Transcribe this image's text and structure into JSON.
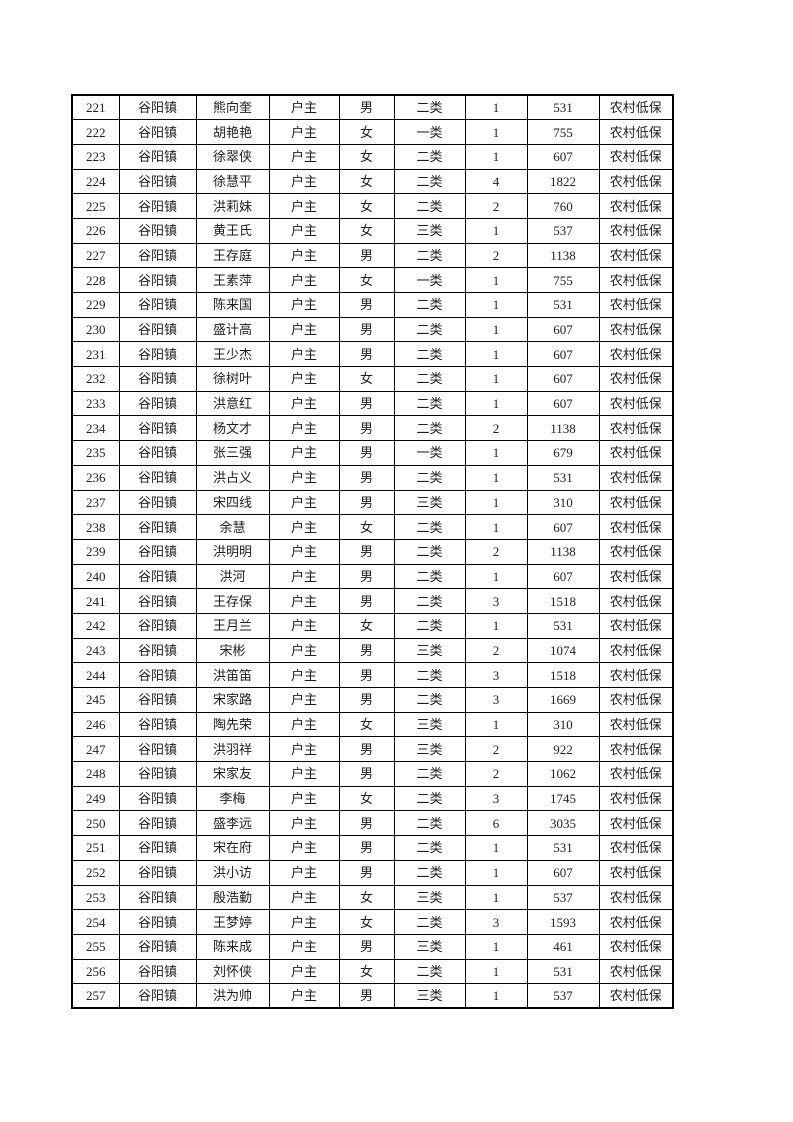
{
  "page": {
    "background_color": "#ffffff"
  },
  "table": {
    "border_color": "#000000",
    "text_color": "#1f1f1f",
    "column_keys": [
      "seq",
      "town",
      "name",
      "relation",
      "gender",
      "category",
      "count",
      "amount",
      "type"
    ],
    "rows": [
      [
        "221",
        "谷阳镇",
        "熊向奎",
        "户主",
        "男",
        "二类",
        "1",
        "531",
        "农村低保"
      ],
      [
        "222",
        "谷阳镇",
        "胡艳艳",
        "户主",
        "女",
        "一类",
        "1",
        "755",
        "农村低保"
      ],
      [
        "223",
        "谷阳镇",
        "徐翠侠",
        "户主",
        "女",
        "二类",
        "1",
        "607",
        "农村低保"
      ],
      [
        "224",
        "谷阳镇",
        "徐慧平",
        "户主",
        "女",
        "二类",
        "4",
        "1822",
        "农村低保"
      ],
      [
        "225",
        "谷阳镇",
        "洪莉妹",
        "户主",
        "女",
        "二类",
        "2",
        "760",
        "农村低保"
      ],
      [
        "226",
        "谷阳镇",
        "黄王氏",
        "户主",
        "女",
        "三类",
        "1",
        "537",
        "农村低保"
      ],
      [
        "227",
        "谷阳镇",
        "王存庭",
        "户主",
        "男",
        "二类",
        "2",
        "1138",
        "农村低保"
      ],
      [
        "228",
        "谷阳镇",
        "王素萍",
        "户主",
        "女",
        "一类",
        "1",
        "755",
        "农村低保"
      ],
      [
        "229",
        "谷阳镇",
        "陈来国",
        "户主",
        "男",
        "二类",
        "1",
        "531",
        "农村低保"
      ],
      [
        "230",
        "谷阳镇",
        "盛计高",
        "户主",
        "男",
        "二类",
        "1",
        "607",
        "农村低保"
      ],
      [
        "231",
        "谷阳镇",
        "王少杰",
        "户主",
        "男",
        "二类",
        "1",
        "607",
        "农村低保"
      ],
      [
        "232",
        "谷阳镇",
        "徐树叶",
        "户主",
        "女",
        "二类",
        "1",
        "607",
        "农村低保"
      ],
      [
        "233",
        "谷阳镇",
        "洪意红",
        "户主",
        "男",
        "二类",
        "1",
        "607",
        "农村低保"
      ],
      [
        "234",
        "谷阳镇",
        "杨文才",
        "户主",
        "男",
        "二类",
        "2",
        "1138",
        "农村低保"
      ],
      [
        "235",
        "谷阳镇",
        "张三强",
        "户主",
        "男",
        "一类",
        "1",
        "679",
        "农村低保"
      ],
      [
        "236",
        "谷阳镇",
        "洪占义",
        "户主",
        "男",
        "二类",
        "1",
        "531",
        "农村低保"
      ],
      [
        "237",
        "谷阳镇",
        "宋四线",
        "户主",
        "男",
        "三类",
        "1",
        "310",
        "农村低保"
      ],
      [
        "238",
        "谷阳镇",
        "余慧",
        "户主",
        "女",
        "二类",
        "1",
        "607",
        "农村低保"
      ],
      [
        "239",
        "谷阳镇",
        "洪明明",
        "户主",
        "男",
        "二类",
        "2",
        "1138",
        "农村低保"
      ],
      [
        "240",
        "谷阳镇",
        "洪河",
        "户主",
        "男",
        "二类",
        "1",
        "607",
        "农村低保"
      ],
      [
        "241",
        "谷阳镇",
        "王存保",
        "户主",
        "男",
        "二类",
        "3",
        "1518",
        "农村低保"
      ],
      [
        "242",
        "谷阳镇",
        "王月兰",
        "户主",
        "女",
        "二类",
        "1",
        "531",
        "农村低保"
      ],
      [
        "243",
        "谷阳镇",
        "宋彬",
        "户主",
        "男",
        "三类",
        "2",
        "1074",
        "农村低保"
      ],
      [
        "244",
        "谷阳镇",
        "洪笛笛",
        "户主",
        "男",
        "二类",
        "3",
        "1518",
        "农村低保"
      ],
      [
        "245",
        "谷阳镇",
        "宋家路",
        "户主",
        "男",
        "二类",
        "3",
        "1669",
        "农村低保"
      ],
      [
        "246",
        "谷阳镇",
        "陶先荣",
        "户主",
        "女",
        "三类",
        "1",
        "310",
        "农村低保"
      ],
      [
        "247",
        "谷阳镇",
        "洪羽祥",
        "户主",
        "男",
        "三类",
        "2",
        "922",
        "农村低保"
      ],
      [
        "248",
        "谷阳镇",
        "宋家友",
        "户主",
        "男",
        "二类",
        "2",
        "1062",
        "农村低保"
      ],
      [
        "249",
        "谷阳镇",
        "李梅",
        "户主",
        "女",
        "二类",
        "3",
        "1745",
        "农村低保"
      ],
      [
        "250",
        "谷阳镇",
        "盛李远",
        "户主",
        "男",
        "二类",
        "6",
        "3035",
        "农村低保"
      ],
      [
        "251",
        "谷阳镇",
        "宋在府",
        "户主",
        "男",
        "二类",
        "1",
        "531",
        "农村低保"
      ],
      [
        "252",
        "谷阳镇",
        "洪小访",
        "户主",
        "男",
        "二类",
        "1",
        "607",
        "农村低保"
      ],
      [
        "253",
        "谷阳镇",
        "殷浩勤",
        "户主",
        "女",
        "三类",
        "1",
        "537",
        "农村低保"
      ],
      [
        "254",
        "谷阳镇",
        "王梦婷",
        "户主",
        "女",
        "二类",
        "3",
        "1593",
        "农村低保"
      ],
      [
        "255",
        "谷阳镇",
        "陈来成",
        "户主",
        "男",
        "三类",
        "1",
        "461",
        "农村低保"
      ],
      [
        "256",
        "谷阳镇",
        "刘怀侠",
        "户主",
        "女",
        "二类",
        "1",
        "531",
        "农村低保"
      ],
      [
        "257",
        "谷阳镇",
        "洪为帅",
        "户主",
        "男",
        "三类",
        "1",
        "537",
        "农村低保"
      ]
    ]
  }
}
